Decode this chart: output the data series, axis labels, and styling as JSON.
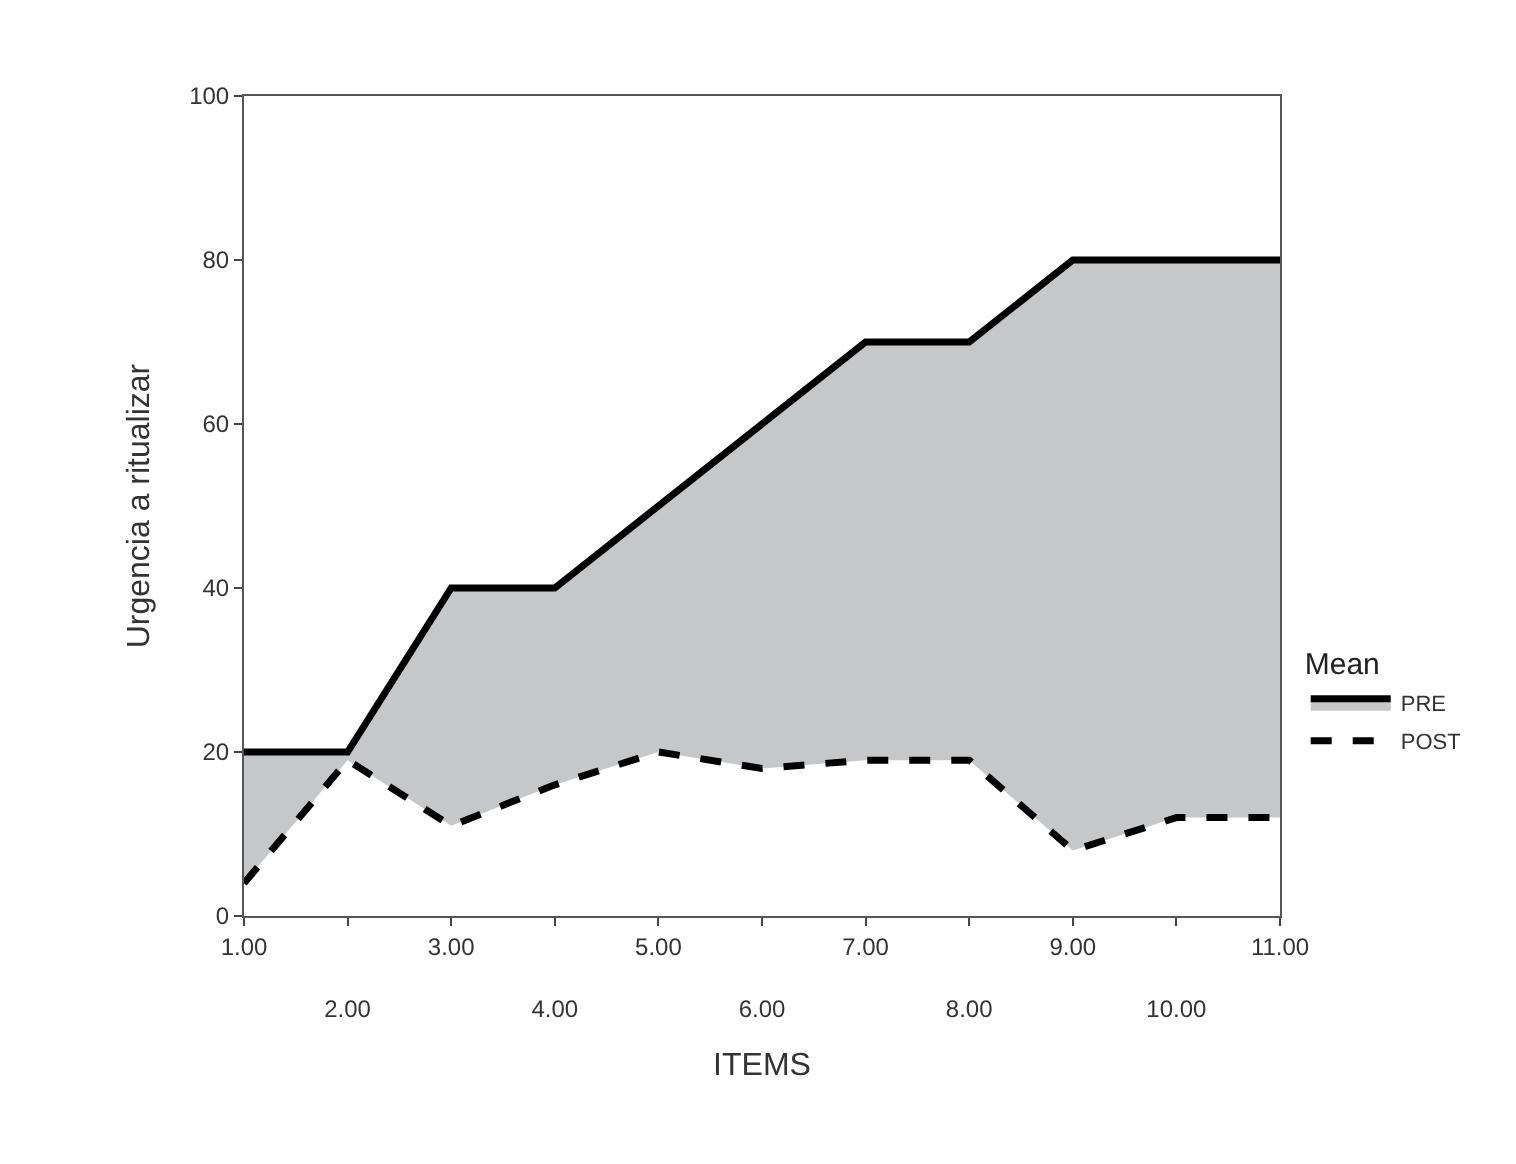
{
  "chart_data": {
    "type": "line",
    "xlabel": "ITEMS",
    "ylabel": "Urgencia a ritualizar",
    "legend_title": "Mean",
    "categories": [
      "1.00",
      "2.00",
      "3.00",
      "4.00",
      "5.00",
      "6.00",
      "7.00",
      "8.00",
      "9.00",
      "10.00",
      "11.00"
    ],
    "series": [
      {
        "name": "PRE",
        "type": "area",
        "color": "#000000",
        "line_style": "solid",
        "values": [
          20,
          20,
          40,
          40,
          50,
          60,
          70,
          70,
          80,
          80,
          80
        ]
      },
      {
        "name": "POST",
        "color": "#000000",
        "line_style": "dashed",
        "values": [
          4,
          19,
          11,
          16,
          20,
          18,
          19,
          19,
          8,
          12,
          12
        ]
      }
    ],
    "ylim": [
      0,
      100
    ],
    "yticks": [
      0,
      20,
      40,
      60,
      80,
      100
    ],
    "legend": "right",
    "marker": "none"
  }
}
